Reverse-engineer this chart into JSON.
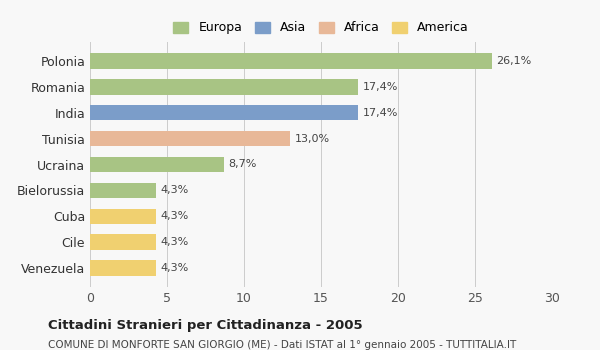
{
  "countries": [
    "Polonia",
    "Romania",
    "India",
    "Tunisia",
    "Ucraina",
    "Bielorussia",
    "Cuba",
    "Cile",
    "Venezuela"
  ],
  "values": [
    26.1,
    17.4,
    17.4,
    13.0,
    8.7,
    4.3,
    4.3,
    4.3,
    4.3
  ],
  "labels": [
    "26,1%",
    "17,4%",
    "17,4%",
    "13,0%",
    "8,7%",
    "4,3%",
    "4,3%",
    "4,3%",
    "4,3%"
  ],
  "colors": [
    "#a8c484",
    "#a8c484",
    "#7b9dc9",
    "#e8b898",
    "#a8c484",
    "#a8c484",
    "#f0d070",
    "#f0d070",
    "#f0d070"
  ],
  "legend_labels": [
    "Europa",
    "Asia",
    "Africa",
    "America"
  ],
  "legend_colors": [
    "#a8c484",
    "#7b9dc9",
    "#e8b898",
    "#f0d070"
  ],
  "xlim": [
    0,
    30
  ],
  "xticks": [
    0,
    5,
    10,
    15,
    20,
    25,
    30
  ],
  "title": "Cittadini Stranieri per Cittadinanza - 2005",
  "subtitle": "COMUNE DI MONFORTE SAN GIORGIO (ME) - Dati ISTAT al 1° gennaio 2005 - TUTTITALIA.IT",
  "background_color": "#f8f8f8",
  "grid_color": "#cccccc"
}
